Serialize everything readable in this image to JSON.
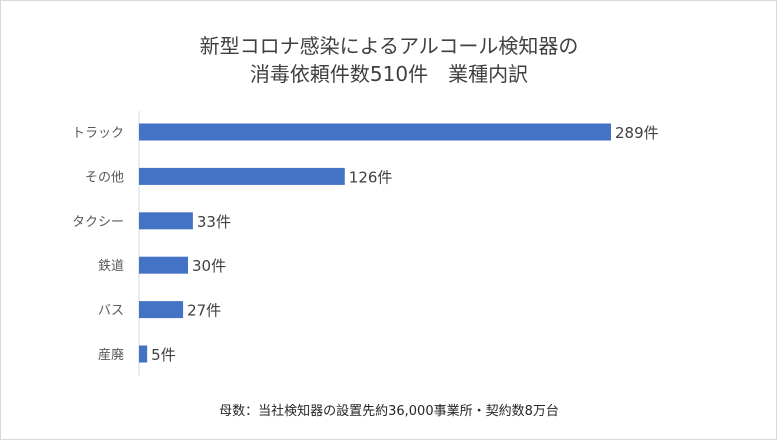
{
  "chart_data": {
    "type": "bar",
    "orientation": "horizontal",
    "title_lines": [
      "新型コロナ感染によるアルコール検知器の",
      "消毒依頼件数510件　業種内訳"
    ],
    "categories": [
      "トラック",
      "その他",
      "タクシー",
      "鉄道",
      "バス",
      "産廃"
    ],
    "values": [
      289,
      126,
      33,
      30,
      27,
      5
    ],
    "data_labels": [
      "289件",
      "126件",
      "33件",
      "30件",
      "27件",
      "5件"
    ],
    "footnote": "母数：当社検知器の設置先約36,000事業所・契約数8万台",
    "xlim": [
      0,
      289
    ],
    "grid": false,
    "legend": "none",
    "colors": {
      "bar": "#4472c4",
      "text": "#595959",
      "title": "#404040",
      "axis": "#d9d9d9"
    }
  }
}
